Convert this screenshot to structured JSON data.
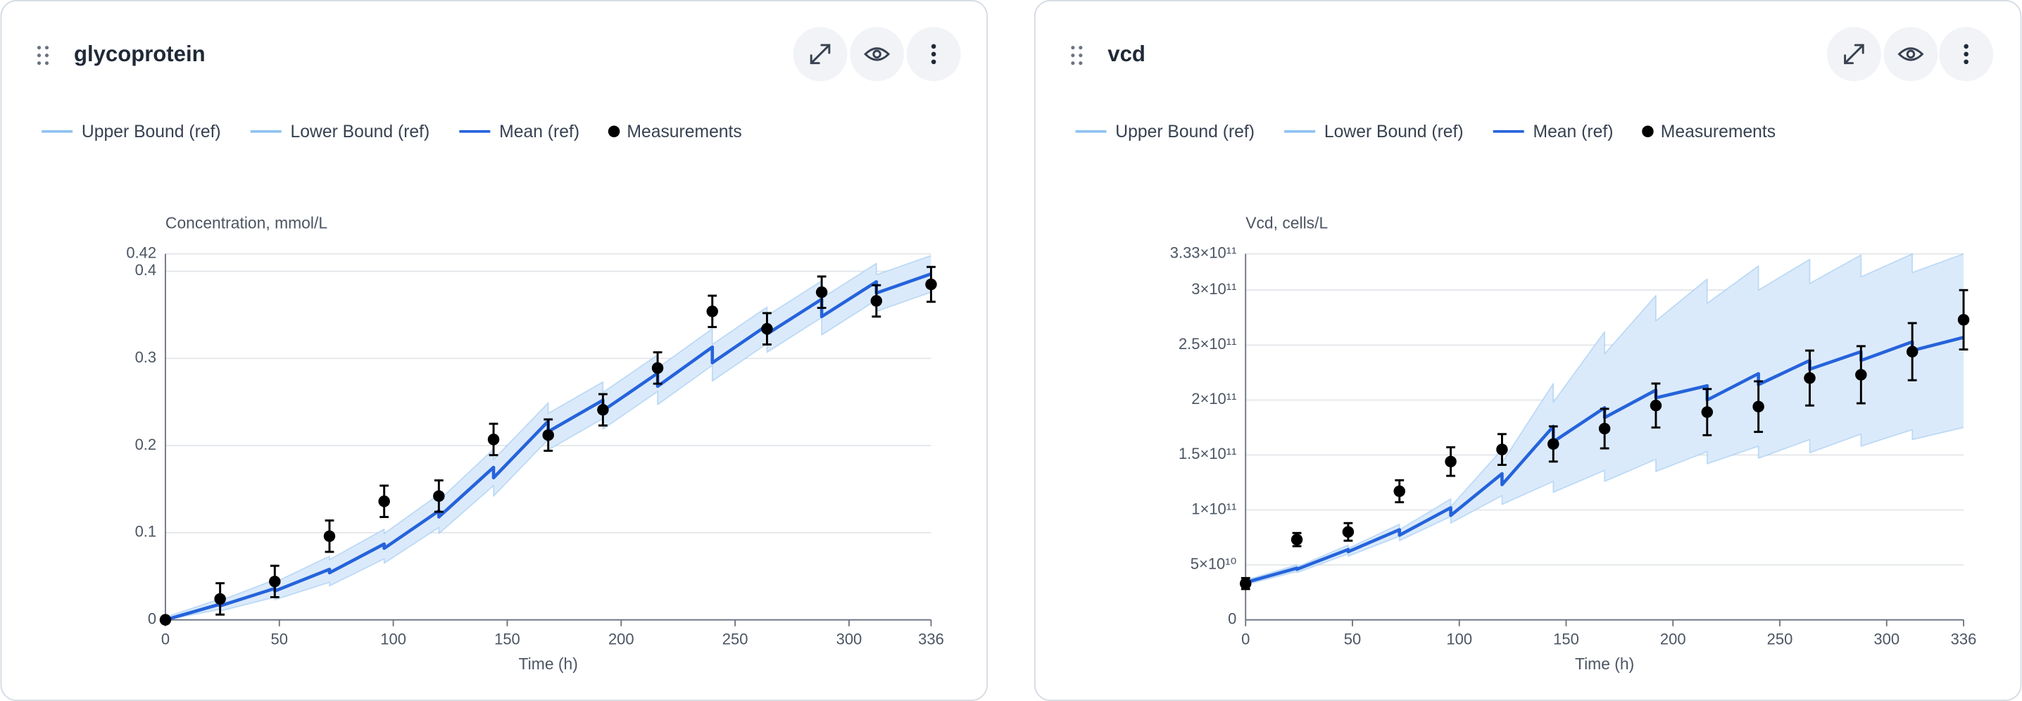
{
  "chart_data": [
    {
      "type": "line",
      "title": "glycoprotein",
      "x_label": "Time (h)",
      "y_label": "Concentration, mmol/L",
      "xlim": [
        0,
        336
      ],
      "xticks": [
        0,
        50,
        100,
        150,
        200,
        250,
        300,
        336
      ],
      "ylim": [
        0,
        0.42
      ],
      "yticks": [
        0,
        0.1,
        0.2,
        0.3,
        0.4,
        0.42
      ],
      "grid": true,
      "legend": "top-left",
      "band_fill": "#dbeafb",
      "series": [
        {
          "name": "Upper Bound (ref)",
          "color": "#90c2f0",
          "mark": "line",
          "x": [
            0,
            24,
            24,
            48,
            48,
            72,
            72,
            96,
            96,
            120,
            120,
            144,
            144,
            168,
            168,
            192,
            192,
            216,
            216,
            240,
            240,
            264,
            264,
            288,
            288,
            312,
            312,
            336
          ],
          "values": [
            0.003,
            0.024,
            0.022,
            0.046,
            0.043,
            0.073,
            0.069,
            0.104,
            0.099,
            0.144,
            0.137,
            0.196,
            0.184,
            0.249,
            0.237,
            0.273,
            0.261,
            0.304,
            0.289,
            0.334,
            0.316,
            0.359,
            0.349,
            0.389,
            0.369,
            0.409,
            0.396,
            0.418
          ]
        },
        {
          "name": "Lower Bound (ref)",
          "color": "#90c2f0",
          "mark": "line",
          "x": [
            0,
            24,
            24,
            48,
            48,
            72,
            72,
            96,
            96,
            120,
            120,
            144,
            144,
            168,
            168,
            192,
            192,
            216,
            216,
            240,
            240,
            264,
            264,
            288,
            288,
            312,
            312,
            336
          ],
          "values": [
            0,
            0.012,
            0.01,
            0.026,
            0.023,
            0.043,
            0.039,
            0.07,
            0.065,
            0.106,
            0.099,
            0.154,
            0.142,
            0.207,
            0.195,
            0.231,
            0.219,
            0.262,
            0.247,
            0.292,
            0.274,
            0.317,
            0.307,
            0.347,
            0.327,
            0.367,
            0.354,
            0.376
          ]
        },
        {
          "name": "Mean (ref)",
          "color": "#2563db",
          "mark": "line",
          "x": [
            0,
            24,
            24,
            48,
            48,
            72,
            72,
            96,
            96,
            120,
            120,
            144,
            144,
            168,
            168,
            192,
            192,
            216,
            216,
            240,
            240,
            264,
            264,
            288,
            288,
            312,
            312,
            336
          ],
          "values": [
            0,
            0.018,
            0.016,
            0.036,
            0.033,
            0.058,
            0.054,
            0.087,
            0.082,
            0.125,
            0.118,
            0.175,
            0.163,
            0.228,
            0.216,
            0.252,
            0.24,
            0.283,
            0.268,
            0.313,
            0.295,
            0.338,
            0.328,
            0.368,
            0.348,
            0.388,
            0.375,
            0.397
          ]
        },
        {
          "name": "Measurements",
          "color": "#000000",
          "mark": "point",
          "x": [
            0,
            24,
            48,
            72,
            96,
            120,
            144,
            168,
            192,
            216,
            240,
            264,
            288,
            312,
            336
          ],
          "values": [
            0,
            0.024,
            0.044,
            0.096,
            0.136,
            0.142,
            0.207,
            0.212,
            0.241,
            0.289,
            0.354,
            0.334,
            0.376,
            0.366,
            0.385
          ],
          "errors": [
            0,
            0.018,
            0.018,
            0.018,
            0.018,
            0.018,
            0.018,
            0.018,
            0.018,
            0.018,
            0.018,
            0.018,
            0.018,
            0.018,
            0.02
          ]
        }
      ]
    },
    {
      "type": "line",
      "title": "vcd",
      "x_label": "Time (h)",
      "y_label": "Vcd, cells/L",
      "xlim": [
        0,
        336
      ],
      "xticks": [
        0,
        50,
        100,
        150,
        200,
        250,
        300,
        336
      ],
      "ylim": [
        0,
        333000000000.0
      ],
      "yticks": [
        0,
        {
          "value": 50000000000.0,
          "label": "5×10¹⁰"
        },
        {
          "value": 100000000000.0,
          "label": "1×10¹¹"
        },
        {
          "value": 150000000000.0,
          "label": "1.5×10¹¹"
        },
        {
          "value": 200000000000.0,
          "label": "2×10¹¹"
        },
        {
          "value": 250000000000.0,
          "label": "2.5×10¹¹"
        },
        {
          "value": 300000000000.0,
          "label": "3×10¹¹"
        },
        {
          "value": 333000000000.0,
          "label": "3.33×10¹¹"
        }
      ],
      "grid": true,
      "legend": "top-left",
      "band_fill": "#dbeafb",
      "series": [
        {
          "name": "Upper Bound (ref)",
          "color": "#90c2f0",
          "mark": "line",
          "x": [
            0,
            24,
            24,
            48,
            48,
            72,
            72,
            96,
            96,
            120,
            120,
            144,
            144,
            168,
            168,
            192,
            192,
            216,
            216,
            240,
            240,
            264,
            264,
            288,
            288,
            312,
            312,
            336
          ],
          "values": [
            36000000000.0,
            50000000000.0,
            48000000000.0,
            68000000000.0,
            65000000000.0,
            87000000000.0,
            82000000000.0,
            110000000000.0,
            103000000000.0,
            155000000000.0,
            143000000000.0,
            215000000000.0,
            198000000000.0,
            262000000000.0,
            242000000000.0,
            295000000000.0,
            272000000000.0,
            310000000000.0,
            288000000000.0,
            322000000000.0,
            300000000000.0,
            328000000000.0,
            306000000000.0,
            332000000000.0,
            312000000000.0,
            333000000000.0,
            316000000000.0,
            333000000000.0
          ]
        },
        {
          "name": "Lower Bound (ref)",
          "color": "#90c2f0",
          "mark": "line",
          "x": [
            0,
            24,
            24,
            48,
            48,
            72,
            72,
            96,
            96,
            120,
            120,
            144,
            144,
            168,
            168,
            192,
            192,
            216,
            216,
            240,
            240,
            264,
            264,
            288,
            288,
            312,
            312,
            336
          ],
          "values": [
            32000000000.0,
            44000000000.0,
            43000000000.0,
            60000000000.0,
            58000000000.0,
            76000000000.0,
            72000000000.0,
            94000000000.0,
            88000000000.0,
            113000000000.0,
            105000000000.0,
            126000000000.0,
            116000000000.0,
            136000000000.0,
            126000000000.0,
            146000000000.0,
            135000000000.0,
            153000000000.0,
            142000000000.0,
            158000000000.0,
            147000000000.0,
            164000000000.0,
            152000000000.0,
            169000000000.0,
            158000000000.0,
            173000000000.0,
            164000000000.0,
            175000000000.0
          ]
        },
        {
          "name": "Mean (ref)",
          "color": "#2563db",
          "mark": "line",
          "x": [
            0,
            24,
            24,
            48,
            48,
            72,
            72,
            96,
            96,
            120,
            120,
            144,
            144,
            168,
            168,
            192,
            192,
            216,
            216,
            240,
            240,
            264,
            264,
            288,
            288,
            312,
            312,
            336
          ],
          "values": [
            34000000000.0,
            47000000000.0,
            46000000000.0,
            64000000000.0,
            62000000000.0,
            82000000000.0,
            77000000000.0,
            102000000000.0,
            95000000000.0,
            133000000000.0,
            123000000000.0,
            176000000000.0,
            162000000000.0,
            193000000000.0,
            184000000000.0,
            209000000000.0,
            202000000000.0,
            213000000000.0,
            200000000000.0,
            224000000000.0,
            214000000000.0,
            236000000000.0,
            228000000000.0,
            244000000000.0,
            236000000000.0,
            253000000000.0,
            245000000000.0,
            257000000000.0
          ]
        },
        {
          "name": "Measurements",
          "color": "#000000",
          "mark": "point",
          "x": [
            0,
            24,
            48,
            72,
            96,
            120,
            144,
            168,
            192,
            216,
            240,
            264,
            288,
            312,
            336
          ],
          "values": [
            33000000000.0,
            73000000000.0,
            80000000000.0,
            117000000000.0,
            144000000000.0,
            155000000000.0,
            160000000000.0,
            174000000000.0,
            195000000000.0,
            189000000000.0,
            194000000000.0,
            220000000000.0,
            223000000000.0,
            244000000000.0,
            273000000000.0
          ],
          "errors": [
            5000000000.0,
            6000000000.0,
            8000000000.0,
            10000000000.0,
            13000000000.0,
            14000000000.0,
            16000000000.0,
            18000000000.0,
            20000000000.0,
            21000000000.0,
            23000000000.0,
            25000000000.0,
            26000000000.0,
            26000000000.0,
            27000000000.0
          ]
        }
      ]
    }
  ]
}
